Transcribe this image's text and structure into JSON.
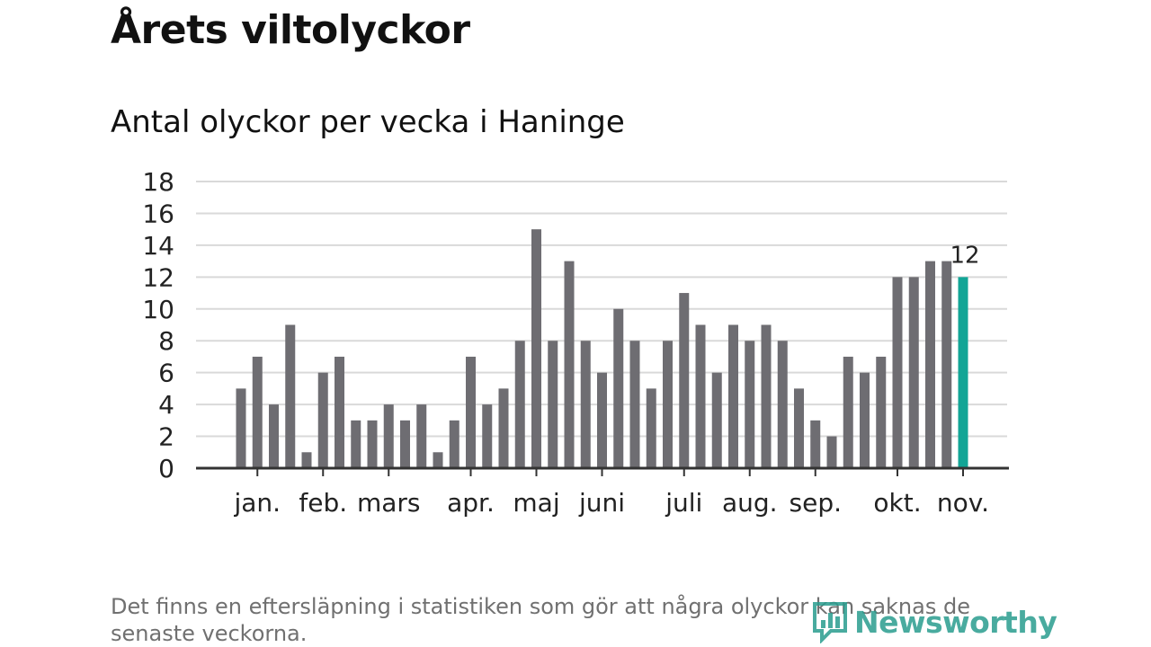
{
  "title": "Årets viltolyckor",
  "subtitle": "Antal olyckor per vecka i Haninge",
  "footnote": "Det finns en eftersläpning i statistiken som gör att några olyckor kan saknas de senaste veckorna.",
  "brand": "Newsworthy",
  "colors": {
    "bar": "#6e6d72",
    "highlight": "#12a596",
    "grid": "#d9d9d9",
    "axis": "#333333",
    "text": "#222222"
  },
  "chart_data": {
    "type": "bar",
    "title": "Antal olyckor per vecka i Haninge",
    "xlabel": "",
    "ylabel": "",
    "ylim": [
      0,
      18
    ],
    "yticks": [
      0,
      2,
      4,
      6,
      8,
      10,
      12,
      14,
      16,
      18
    ],
    "values": [
      5,
      7,
      4,
      9,
      1,
      6,
      7,
      3,
      3,
      4,
      3,
      4,
      1,
      3,
      7,
      4,
      5,
      8,
      15,
      8,
      13,
      8,
      6,
      10,
      8,
      5,
      8,
      11,
      9,
      6,
      9,
      8,
      9,
      8,
      5,
      3,
      2,
      7,
      6,
      7,
      12,
      12,
      13,
      13,
      12
    ],
    "highlight_index": 44,
    "highlight_label": "12",
    "month_labels": [
      {
        "label": "jan.",
        "week": 1
      },
      {
        "label": "feb.",
        "week": 5
      },
      {
        "label": "mars",
        "week": 9
      },
      {
        "label": "apr.",
        "week": 14
      },
      {
        "label": "maj",
        "week": 18
      },
      {
        "label": "juni",
        "week": 22
      },
      {
        "label": "juli",
        "week": 27
      },
      {
        "label": "aug.",
        "week": 31
      },
      {
        "label": "sep.",
        "week": 35
      },
      {
        "label": "okt.",
        "week": 40
      },
      {
        "label": "nov.",
        "week": 44
      }
    ],
    "grid": true,
    "legend": "none"
  }
}
